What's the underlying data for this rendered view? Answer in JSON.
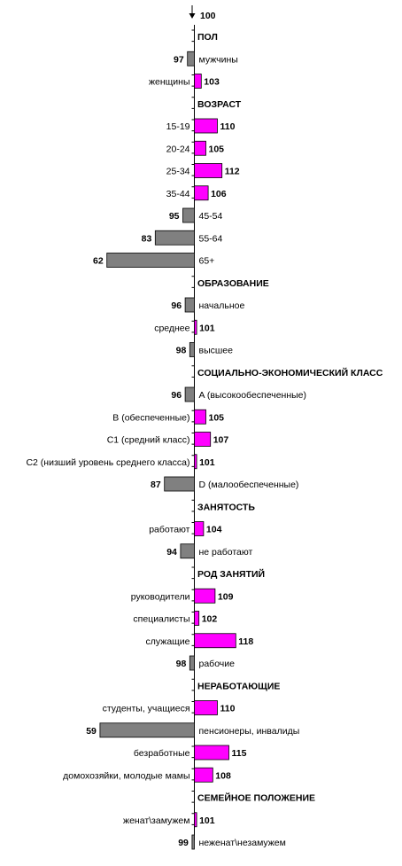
{
  "chart_data": {
    "type": "bar",
    "orientation": "horizontal",
    "baseline": 100,
    "baseline_label": "100",
    "colors": {
      "above": "#ff00ff",
      "below": "#808080",
      "outline": "#000000"
    },
    "items": [
      {
        "kind": "section",
        "label": "ПОЛ"
      },
      {
        "kind": "bar",
        "label": "мужчины",
        "value": 97
      },
      {
        "kind": "bar",
        "label": "женщины",
        "value": 103
      },
      {
        "kind": "section",
        "label": "ВОЗРАСТ"
      },
      {
        "kind": "bar",
        "label": "15-19",
        "value": 110
      },
      {
        "kind": "bar",
        "label": "20-24",
        "value": 105
      },
      {
        "kind": "bar",
        "label": "25-34",
        "value": 112
      },
      {
        "kind": "bar",
        "label": "35-44",
        "value": 106
      },
      {
        "kind": "bar",
        "label": "45-54",
        "value": 95
      },
      {
        "kind": "bar",
        "label": "55-64",
        "value": 83
      },
      {
        "kind": "bar",
        "label": "65+",
        "value": 62
      },
      {
        "kind": "section",
        "label": "ОБРАЗОВАНИЕ"
      },
      {
        "kind": "bar",
        "label": "начальное",
        "value": 96
      },
      {
        "kind": "bar",
        "label": "среднее",
        "value": 101
      },
      {
        "kind": "bar",
        "label": "высшее",
        "value": 98
      },
      {
        "kind": "section",
        "label": "СОЦИАЛЬНО-ЭКОНОМИЧЕСКИЙ КЛАСС"
      },
      {
        "kind": "bar",
        "label": "A (высокообеспеченные)",
        "value": 96
      },
      {
        "kind": "bar",
        "label": "B (обеспеченные)",
        "value": 105
      },
      {
        "kind": "bar",
        "label": "C1 (средний класс)",
        "value": 107
      },
      {
        "kind": "bar",
        "label": "C2 (низший уровень среднего класса)",
        "value": 101
      },
      {
        "kind": "bar",
        "label": "D (малообеспеченные)",
        "value": 87
      },
      {
        "kind": "section",
        "label": "ЗАНЯТОСТЬ"
      },
      {
        "kind": "bar",
        "label": "работают",
        "value": 104
      },
      {
        "kind": "bar",
        "label": "не работают",
        "value": 94
      },
      {
        "kind": "section",
        "label": "РОД ЗАНЯТИЙ"
      },
      {
        "kind": "bar",
        "label": "руководители",
        "value": 109
      },
      {
        "kind": "bar",
        "label": "специалисты",
        "value": 102
      },
      {
        "kind": "bar",
        "label": "служащие",
        "value": 118
      },
      {
        "kind": "bar",
        "label": "рабочие",
        "value": 98
      },
      {
        "kind": "section",
        "label": "НЕРАБОТАЮЩИЕ"
      },
      {
        "kind": "bar",
        "label": "студенты, учащиеся",
        "value": 110
      },
      {
        "kind": "bar",
        "label": "пенсионеры, инвалиды",
        "value": 59
      },
      {
        "kind": "bar",
        "label": "безработные",
        "value": 115
      },
      {
        "kind": "bar",
        "label": "домохозяйки, молодые мамы",
        "value": 108
      },
      {
        "kind": "section",
        "label": "СЕМЕЙНОЕ ПОЛОЖЕНИЕ"
      },
      {
        "kind": "bar",
        "label": "женат\\замужем",
        "value": 101
      },
      {
        "kind": "bar",
        "label": "неженат\\незамужем",
        "value": 99
      }
    ]
  }
}
